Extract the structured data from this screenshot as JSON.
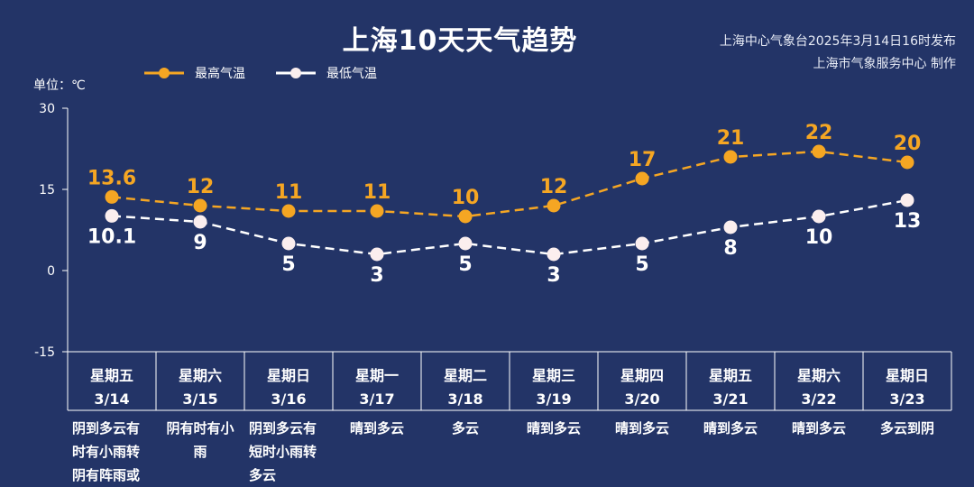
{
  "title": "上海10天天气趋势",
  "credit_line1": "上海中心气象台2025年3月14日16时发布",
  "credit_line2": "上海市气象服务中心 制作",
  "unit_label": "单位：℃",
  "colors": {
    "background": "#233467",
    "high": "#f5a623",
    "low": "#ffffff"
  },
  "chart_data": {
    "type": "line",
    "ylim": [
      -15,
      30
    ],
    "yticks": [
      "30",
      "15",
      "0",
      "-15"
    ],
    "categories": [
      "3/14",
      "3/15",
      "3/16",
      "3/17",
      "3/18",
      "3/19",
      "3/20",
      "3/21",
      "3/22",
      "3/23"
    ],
    "series": [
      {
        "name": "最高气温",
        "values": [
          13.6,
          12,
          11,
          11,
          10,
          12,
          17,
          21,
          22,
          20
        ],
        "labels": [
          "13.6",
          "12",
          "11",
          "11",
          "10",
          "12",
          "17",
          "21",
          "22",
          "20"
        ]
      },
      {
        "name": "最低气温",
        "values": [
          10.1,
          9,
          5,
          3,
          5,
          3,
          5,
          8,
          10,
          13
        ],
        "labels": [
          "10.1",
          "9",
          "5",
          "3",
          "5",
          "3",
          "5",
          "8",
          "10",
          "13"
        ]
      }
    ]
  },
  "days": [
    {
      "weekday": "星期五",
      "date": "3/14",
      "weather": "阴到多云有时有小雨转阴有阵雨或"
    },
    {
      "weekday": "星期六",
      "date": "3/15",
      "weather": "阴有时有小雨"
    },
    {
      "weekday": "星期日",
      "date": "3/16",
      "weather": "阴到多云有短时小雨转多云"
    },
    {
      "weekday": "星期一",
      "date": "3/17",
      "weather": "晴到多云"
    },
    {
      "weekday": "星期二",
      "date": "3/18",
      "weather": "多云"
    },
    {
      "weekday": "星期三",
      "date": "3/19",
      "weather": "晴到多云"
    },
    {
      "weekday": "星期四",
      "date": "3/20",
      "weather": "晴到多云"
    },
    {
      "weekday": "星期五",
      "date": "3/21",
      "weather": "晴到多云"
    },
    {
      "weekday": "星期六",
      "date": "3/22",
      "weather": "晴到多云"
    },
    {
      "weekday": "星期日",
      "date": "3/23",
      "weather": "多云到阴"
    }
  ]
}
